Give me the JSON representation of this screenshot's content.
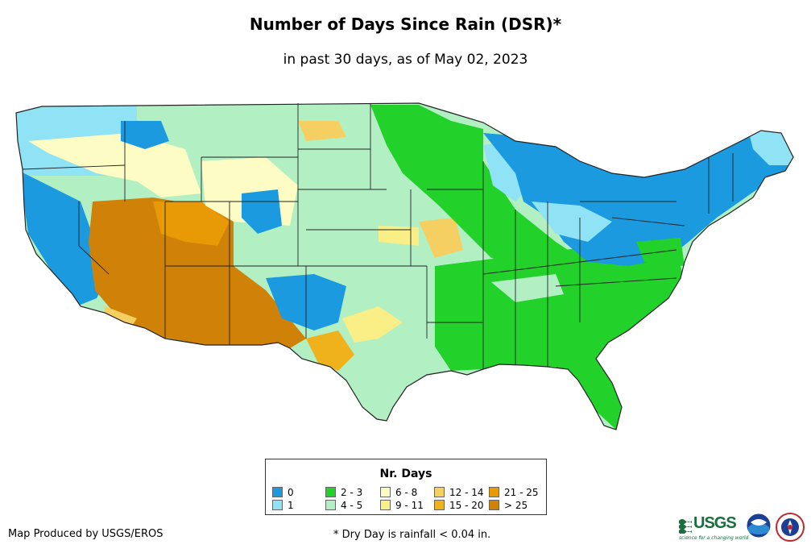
{
  "title": "Number of Days Since Rain (DSR)*",
  "subtitle": "in past 30 days, as of May 02, 2023",
  "legend": {
    "title": "Nr. Days",
    "items": [
      {
        "label": "0",
        "color": "#1b9ae0"
      },
      {
        "label": "1",
        "color": "#8fe3f5"
      },
      {
        "label": "2 - 3",
        "color": "#22d12a"
      },
      {
        "label": "4 - 5",
        "color": "#b2f0c4"
      },
      {
        "label": "6 - 8",
        "color": "#fdfcc4"
      },
      {
        "label": "9 - 11",
        "color": "#f9ef86"
      },
      {
        "label": "12 - 14",
        "color": "#f5cf62"
      },
      {
        "label": "15 - 20",
        "color": "#f0b21c"
      },
      {
        "label": "21 - 25",
        "color": "#e89a06"
      },
      {
        "label": "> 25",
        "color": "#cf8207"
      }
    ]
  },
  "footer": {
    "producer": "Map Produced by USGS/EROS",
    "note": "* Dry Day is rainfall < 0.04 in."
  },
  "logos": {
    "usgs_text": "USGS",
    "usgs_tagline": "science for a changing world",
    "noaa_text": "noaa",
    "nws_text": "NWS"
  },
  "colors": {
    "border": "#222222",
    "usgs_green": "#1a6e3c"
  }
}
